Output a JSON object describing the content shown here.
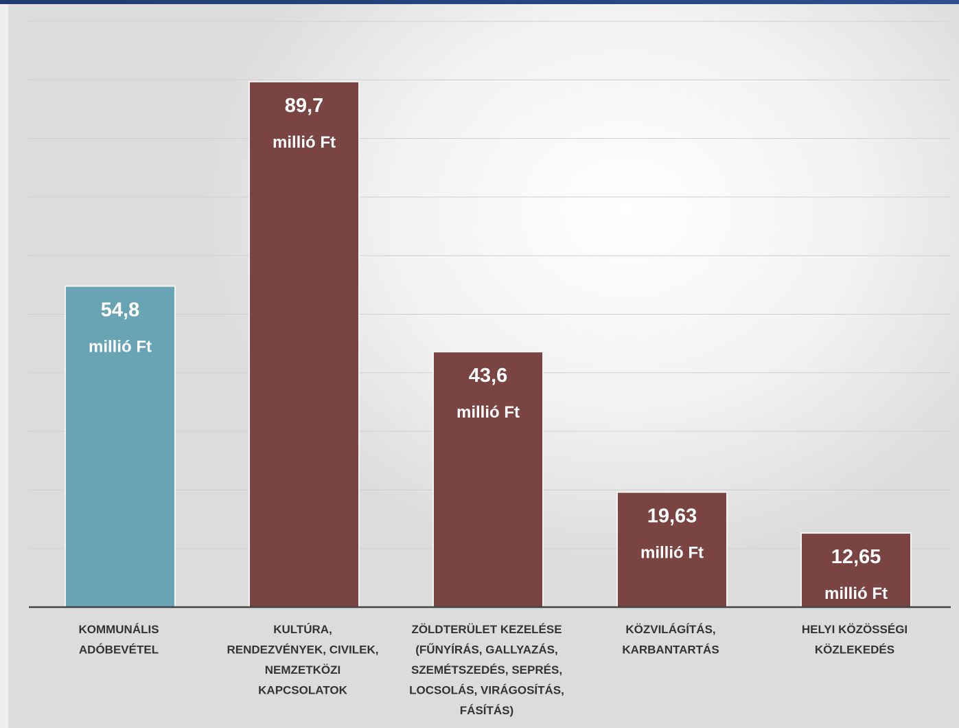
{
  "chart_data": {
    "type": "bar",
    "categories": [
      [
        "KOMMUNÁLIS",
        "ADÓBEVÉTEL"
      ],
      [
        "KULTÚRA,",
        "RENDEZVÉNYEK, CIVILEK,",
        "NEMZETKÖZI",
        "KAPCSOLATOK"
      ],
      [
        "ZÖLDTERÜLET KEZELÉSE",
        "(FŰNYÍRÁS, GALLYAZÁS,",
        "SZEMÉTSZEDÉS, SEPRÉS,",
        "LOCSOLÁS, VIRÁGOSÍTÁS,",
        "FÁSÍTÁS)"
      ],
      [
        "KÖZVILÁGÍTÁS,",
        "KARBANTARTÁS"
      ],
      [
        "HELYI KÖZÖSSÉGI",
        "KÖZLEKEDÉS"
      ]
    ],
    "values": [
      54.8,
      89.7,
      43.6,
      19.63,
      12.65
    ],
    "value_labels": [
      "54,8",
      "89,7",
      "43,6",
      "19,63",
      "12,65"
    ],
    "unit_label": "millió Ft",
    "colors": [
      "#68a4b4",
      "#7a4443",
      "#7a4443",
      "#7a4443",
      "#7a4443"
    ],
    "ylim": [
      0,
      100
    ],
    "grid": true,
    "title": "",
    "xlabel": "",
    "ylabel": ""
  }
}
